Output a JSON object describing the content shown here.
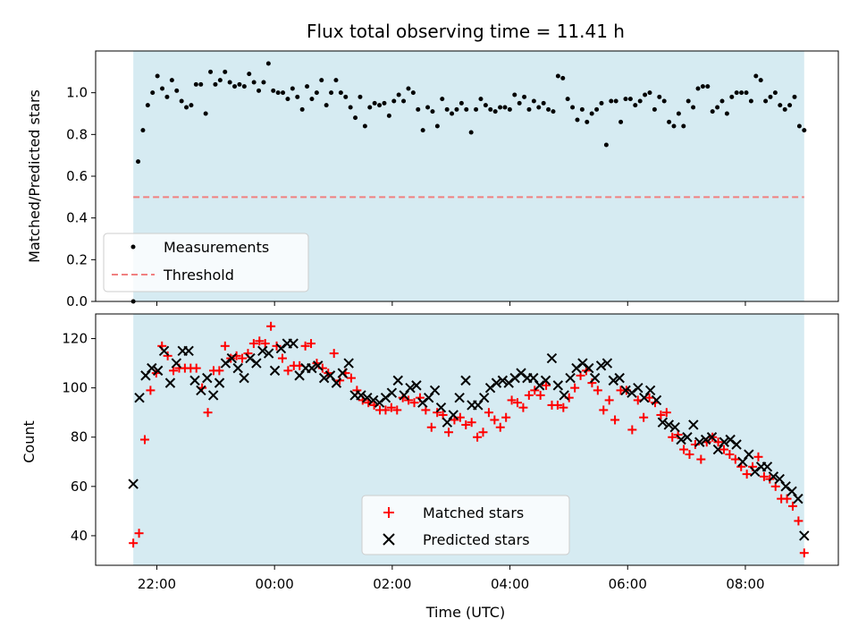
{
  "chart_data": {
    "title": "Flux total observing time = 11.41 h",
    "xlabel": "Time (UTC)",
    "x_ticks": [
      "22:00",
      "00:00",
      "02:00",
      "04:00",
      "06:00",
      "08:00"
    ],
    "observing_window": {
      "start": "21:36",
      "end": "09:00"
    },
    "shade_color": "#add8e6",
    "panels": [
      {
        "type": "scatter",
        "ylabel": "Matched/Predicted stars",
        "ylim": [
          0,
          1.2
        ],
        "yticks": [
          "0.0",
          "0.2",
          "0.4",
          "0.6",
          "0.8",
          "1.0"
        ],
        "legend": {
          "placement": "lower-left",
          "entries": [
            "Measurements",
            "Threshold"
          ]
        },
        "threshold": {
          "name": "Threshold",
          "value": 0.5,
          "color": "#f08080"
        },
        "series": [
          {
            "name": "Measurements",
            "color": "#000000",
            "marker": "dot",
            "values": [
              0.0,
              0.67,
              0.82,
              0.94,
              1.0,
              1.08,
              1.02,
              0.98,
              1.06,
              1.01,
              0.96,
              0.93,
              0.94,
              1.04,
              1.04,
              0.9,
              1.1,
              1.04,
              1.06,
              1.1,
              1.05,
              1.03,
              1.04,
              1.03,
              1.09,
              1.05,
              1.01,
              1.05,
              1.14,
              1.01,
              1.0,
              1.0,
              0.97,
              1.02,
              0.98,
              0.92,
              1.03,
              0.97,
              1.0,
              1.06,
              0.94,
              1.0,
              1.06,
              1.0,
              0.98,
              0.93,
              0.88,
              0.98,
              0.84,
              0.93,
              0.95,
              0.94,
              0.95,
              0.89,
              0.96,
              0.99,
              0.96,
              1.02,
              1.0,
              0.92,
              0.82,
              0.93,
              0.91,
              0.84,
              0.97,
              0.92,
              0.9,
              0.92,
              0.95,
              0.92,
              0.81,
              0.92,
              0.97,
              0.94,
              0.92,
              0.91,
              0.93,
              0.93,
              0.92,
              0.99,
              0.95,
              0.98,
              0.92,
              0.96,
              0.93,
              0.95,
              0.92,
              0.91,
              1.08,
              1.07,
              0.97,
              0.93,
              0.87,
              0.92,
              0.86,
              0.9,
              0.92,
              0.95,
              0.75,
              0.96,
              0.96,
              0.86,
              0.97,
              0.97,
              0.94,
              0.96,
              0.99,
              1.0,
              0.92,
              0.98,
              0.96,
              0.86,
              0.84,
              0.9,
              0.84,
              0.96,
              0.93,
              1.02,
              1.03,
              1.03,
              0.91,
              0.93,
              0.96,
              0.9,
              0.98,
              1.0,
              1.0,
              1.0,
              0.96,
              1.08,
              1.06,
              0.96,
              0.98,
              1.0,
              0.94,
              0.92,
              0.94,
              0.98,
              0.84,
              0.82
            ],
            "x_range": [
              "21:36",
              "09:00"
            ]
          }
        ]
      },
      {
        "type": "scatter",
        "ylabel": "Count",
        "ylim": [
          28,
          130
        ],
        "yticks": [
          "40",
          "60",
          "80",
          "100",
          "120"
        ],
        "legend": {
          "placement": "lower-center",
          "entries": [
            "Matched stars",
            "Predicted stars"
          ]
        },
        "series": [
          {
            "name": "Matched stars",
            "color": "#ff0000",
            "marker": "plus",
            "values": [
              37,
              41,
              79,
              99,
              106,
              117,
              113,
              107,
              108,
              108,
              108,
              108,
              100,
              90,
              107,
              107,
              117,
              112,
              113,
              112,
              114,
              118,
              119,
              118,
              125,
              117,
              112,
              107,
              109,
              109,
              117,
              118,
              110,
              108,
              106,
              114,
              103,
              106,
              104,
              99,
              95,
              94,
              93,
              91,
              91,
              92,
              91,
              96,
              95,
              94,
              96,
              91,
              84,
              90,
              89,
              82,
              87,
              88,
              85,
              86,
              80,
              82,
              90,
              87,
              84,
              88,
              95,
              94,
              92,
              97,
              99,
              97,
              101,
              93,
              93,
              92,
              96,
              100,
              105,
              107,
              102,
              99,
              91,
              95,
              87,
              99,
              99,
              83,
              95,
              88,
              96,
              94,
              89,
              90,
              80,
              81,
              75,
              73,
              77,
              71,
              78,
              80,
              78,
              75,
              73,
              71,
              68,
              65,
              68,
              72,
              64,
              63,
              60,
              55,
              55,
              52,
              46,
              33
            ],
            "x_range": [
              "21:36",
              "09:00"
            ]
          },
          {
            "name": "Predicted stars",
            "color": "#000000",
            "marker": "cross",
            "values": [
              61,
              96,
              105,
              108,
              107,
              115,
              102,
              110,
              115,
              115,
              103,
              99,
              104,
              97,
              102,
              110,
              112,
              108,
              104,
              112,
              110,
              115,
              114,
              107,
              116,
              118,
              118,
              105,
              108,
              108,
              109,
              104,
              105,
              102,
              106,
              110,
              97,
              97,
              96,
              95,
              94,
              96,
              98,
              103,
              97,
              100,
              101,
              94,
              96,
              99,
              92,
              86,
              89,
              96,
              103,
              93,
              93,
              96,
              100,
              102,
              103,
              102,
              104,
              106,
              104,
              104,
              101,
              103,
              112,
              101,
              97,
              104,
              108,
              110,
              108,
              104,
              109,
              110,
              103,
              104,
              99,
              98,
              100,
              96,
              99,
              95,
              86,
              85,
              84,
              79,
              80,
              85,
              78,
              79,
              80,
              75,
              78,
              79,
              77,
              70,
              73,
              66,
              68,
              68,
              64,
              63,
              60,
              58,
              55,
              40
            ],
            "x_range": [
              "21:36",
              "09:00"
            ]
          }
        ]
      }
    ]
  }
}
